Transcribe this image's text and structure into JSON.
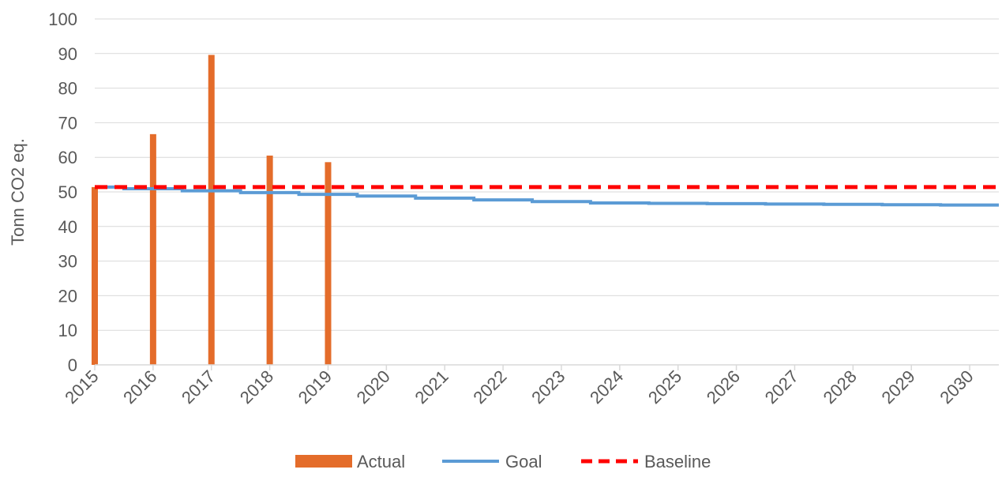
{
  "chart_data": {
    "type": "bar",
    "title": "",
    "xlabel": "",
    "ylabel": "Tonn CO2 eq.",
    "ylim": [
      0,
      100
    ],
    "y_ticks": [
      "0",
      "10",
      "20",
      "30",
      "40",
      "50",
      "60",
      "70",
      "80",
      "90",
      "100"
    ],
    "x_ticks": [
      "2015",
      "2016",
      "2017",
      "2018",
      "2019",
      "2020",
      "2021",
      "2022",
      "2023",
      "2024",
      "2025",
      "2026",
      "2027",
      "2028",
      "2029",
      "2030"
    ],
    "xlim": [
      2015,
      2030.5
    ],
    "grid": true,
    "legend": "bottom",
    "series": [
      {
        "name": "Actual",
        "type": "bar",
        "color": "#E46C2A",
        "points": [
          {
            "x": 2015.0,
            "y": 51.4
          },
          {
            "x": 2016.0,
            "y": 66.7
          },
          {
            "x": 2017.0,
            "y": 89.6
          },
          {
            "x": 2018.0,
            "y": 60.5
          },
          {
            "x": 2019.0,
            "y": 58.6
          }
        ]
      },
      {
        "name": "Goal",
        "type": "step-line",
        "color": "#5B9BD5",
        "points": [
          {
            "x": 2015.0,
            "y": 51.4
          },
          {
            "x": 2015.5,
            "y": 50.9
          },
          {
            "x": 2016.5,
            "y": 50.3
          },
          {
            "x": 2017.5,
            "y": 49.8
          },
          {
            "x": 2018.5,
            "y": 49.3
          },
          {
            "x": 2019.5,
            "y": 48.8
          },
          {
            "x": 2020.5,
            "y": 48.2
          },
          {
            "x": 2021.5,
            "y": 47.7
          },
          {
            "x": 2022.5,
            "y": 47.2
          },
          {
            "x": 2023.5,
            "y": 46.8
          },
          {
            "x": 2024.5,
            "y": 46.7
          },
          {
            "x": 2025.5,
            "y": 46.6
          },
          {
            "x": 2026.5,
            "y": 46.5
          },
          {
            "x": 2027.5,
            "y": 46.4
          },
          {
            "x": 2028.5,
            "y": 46.3
          },
          {
            "x": 2029.5,
            "y": 46.2
          },
          {
            "x": 2030.5,
            "y": 46.2
          }
        ]
      },
      {
        "name": "Baseline",
        "type": "dashed-line",
        "color": "#FF0000",
        "points": [
          {
            "x": 2015.0,
            "y": 51.4
          },
          {
            "x": 2030.5,
            "y": 51.4
          }
        ]
      }
    ]
  }
}
